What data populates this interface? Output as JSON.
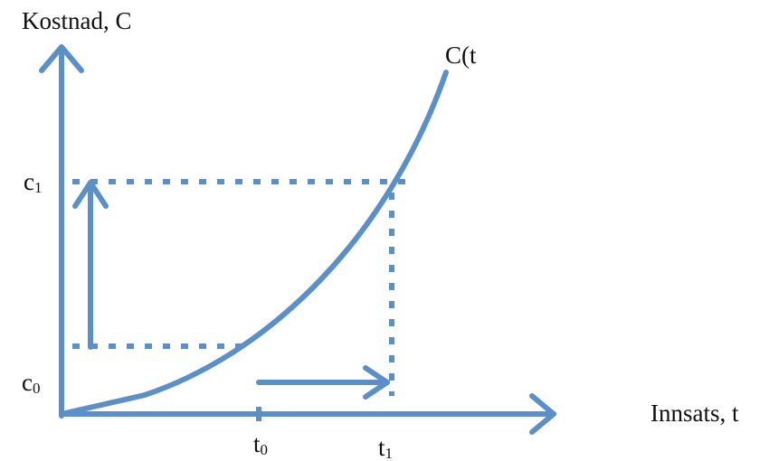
{
  "labels": {
    "y_axis": "Kostnad, C",
    "x_axis": "Innsats, t",
    "curve": "C(t",
    "c1": "c",
    "c1_sub": "1",
    "c0": "c",
    "c0_sub": "0",
    "t0": "t",
    "t0_sub": "0",
    "t1": "t",
    "t1_sub": "1"
  },
  "colors": {
    "line": "#5b8fc8",
    "text": "#111111"
  }
}
